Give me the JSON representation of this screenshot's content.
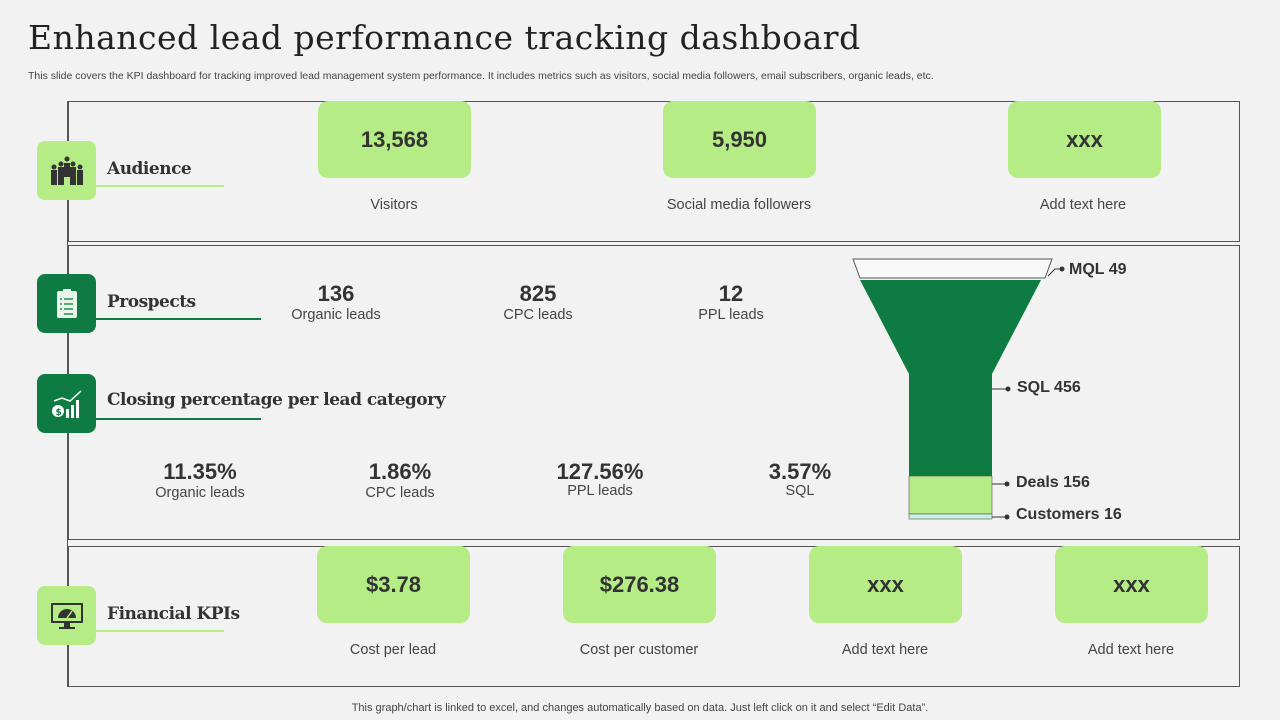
{
  "title": "Enhanced lead performance tracking dashboard",
  "subtitle": "This slide covers the KPI dashboard for tracking improved lead management system performance. It includes metrics such as visitors, social media followers, email subscribers, organic leads, etc.",
  "colors": {
    "light_green": "#b5ec86",
    "dark_green": "#0e7c42",
    "background": "#f2f2f2"
  },
  "audience": {
    "label": "Audience",
    "icon": "people-group-icon",
    "cards": [
      {
        "value": "13,568",
        "label": "Visitors"
      },
      {
        "value": "5,950",
        "label": "Social media followers"
      },
      {
        "value": "xxx",
        "label": "Add text here"
      }
    ]
  },
  "prospects": {
    "label": "Prospects",
    "icon": "clipboard-checklist-icon",
    "metrics": [
      {
        "value": "136",
        "label": "Organic leads"
      },
      {
        "value": "825",
        "label": "CPC leads"
      },
      {
        "value": "12",
        "label": "PPL leads"
      }
    ]
  },
  "closing": {
    "label": "Closing percentage per lead category",
    "icon": "money-growth-chart-icon",
    "metrics": [
      {
        "value": "11.35%",
        "label": "Organic leads"
      },
      {
        "value": "1.86%",
        "label": "CPC leads"
      },
      {
        "value": "127.56%",
        "label": "PPL leads"
      },
      {
        "value": "3.57%",
        "label": "SQL"
      }
    ]
  },
  "funnel": {
    "stages": [
      {
        "name": "MQL",
        "value": 49,
        "text": "MQL 49"
      },
      {
        "name": "SQL",
        "value": 456,
        "text": "SQL 456"
      },
      {
        "name": "Deals",
        "value": 156,
        "text": "Deals 156"
      },
      {
        "name": "Customers",
        "value": 16,
        "text": "Customers 16"
      }
    ]
  },
  "financial": {
    "label": "Financial KPIs",
    "icon": "monitor-gauge-icon",
    "cards": [
      {
        "value": "$3.78",
        "label": "Cost per lead"
      },
      {
        "value": "$276.38",
        "label": "Cost per customer"
      },
      {
        "value": "xxx",
        "label": "Add text here"
      },
      {
        "value": "xxx",
        "label": "Add text here"
      }
    ]
  },
  "footer": "This graph/chart is linked to excel,  and changes automatically based on data. Just left click on it and select “Edit Data”."
}
